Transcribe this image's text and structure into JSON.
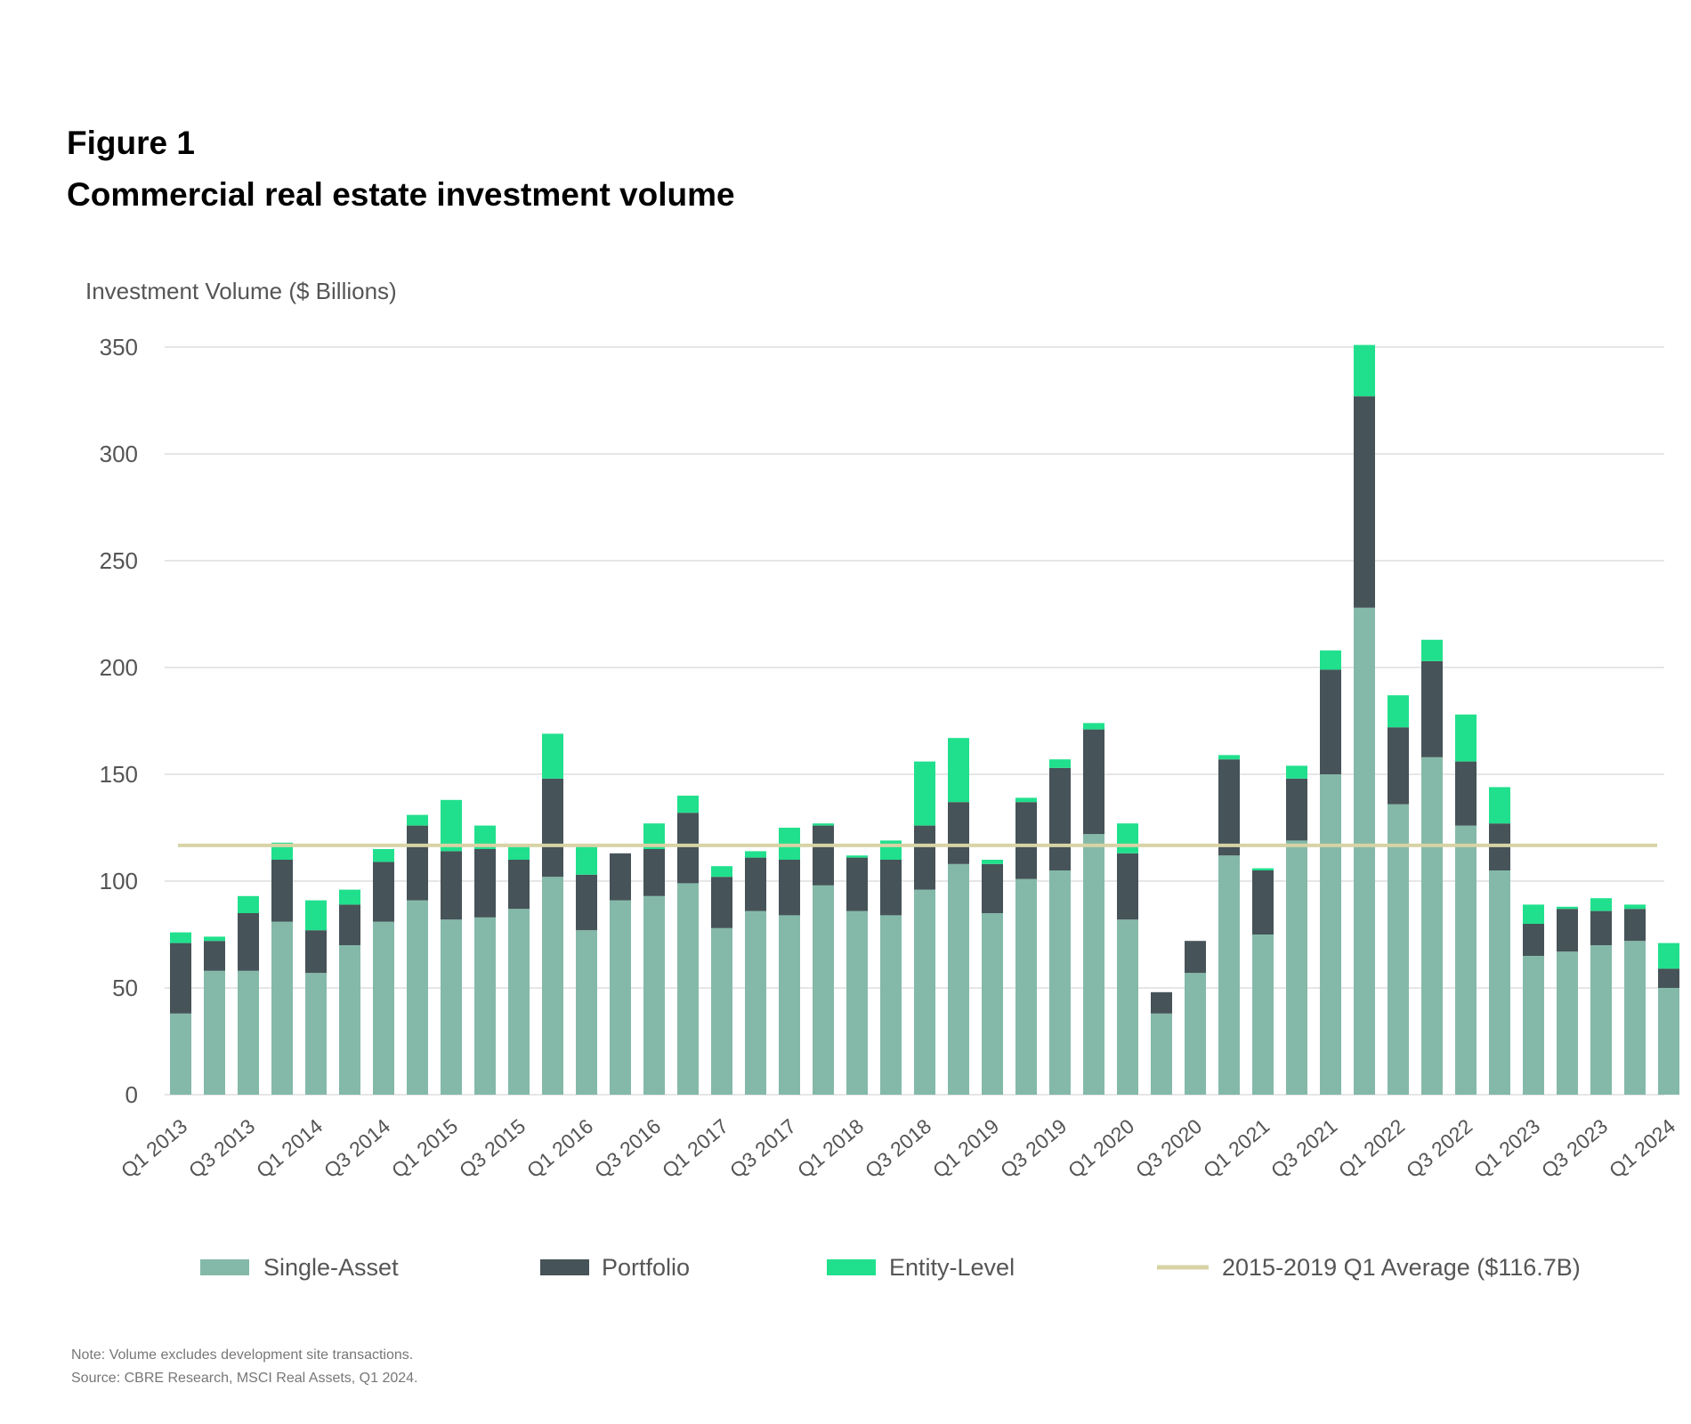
{
  "figure_label": "Figure 1",
  "figure_title": "Commercial real estate investment volume",
  "colors": {
    "single_asset": "#84b9a9",
    "portfolio": "#465358",
    "entity_level": "#20e08d",
    "average_line": "#d7d3a5",
    "grid": "#dedede",
    "text": "#555555"
  },
  "chart_data": {
    "type": "bar",
    "stacked": true,
    "ylabel": "Investment Volume ($ Billions)",
    "ylim": [
      0,
      350
    ],
    "yticks": [
      0,
      50,
      100,
      150,
      200,
      250,
      300,
      350
    ],
    "grid": true,
    "legend_position": "bottom",
    "categories": [
      "Q1 2013",
      "Q2 2013",
      "Q3 2013",
      "Q4 2013",
      "Q1 2014",
      "Q2 2014",
      "Q3 2014",
      "Q4 2014",
      "Q1 2015",
      "Q2 2015",
      "Q3 2015",
      "Q4 2015",
      "Q1 2016",
      "Q2 2016",
      "Q3 2016",
      "Q4 2016",
      "Q1 2017",
      "Q2 2017",
      "Q3 2017",
      "Q4 2017",
      "Q1 2018",
      "Q2 2018",
      "Q3 2018",
      "Q4 2018",
      "Q1 2019",
      "Q2 2019",
      "Q3 2019",
      "Q4 2019",
      "Q1 2020",
      "Q2 2020",
      "Q3 2020",
      "Q4 2020",
      "Q1 2021",
      "Q2 2021",
      "Q3 2021",
      "Q4 2021",
      "Q1 2022",
      "Q2 2022",
      "Q3 2022",
      "Q4 2022",
      "Q1 2023",
      "Q2 2023",
      "Q3 2023",
      "Q4 2023",
      "Q1 2024"
    ],
    "tick_labels": [
      "Q1 2013",
      "Q3 2013",
      "Q1 2014",
      "Q3 2014",
      "Q1 2015",
      "Q3 2015",
      "Q1 2016",
      "Q3 2016",
      "Q1 2017",
      "Q3 2017",
      "Q1 2018",
      "Q3 2018",
      "Q1 2019",
      "Q3 2019",
      "Q1 2020",
      "Q3 2020",
      "Q1 2021",
      "Q3 2021",
      "Q1 2022",
      "Q3 2022",
      "Q1 2023",
      "Q3 2023",
      "Q1 2024"
    ],
    "series": [
      {
        "name": "Single-Asset",
        "values": [
          38,
          58,
          58,
          81,
          57,
          70,
          81,
          91,
          82,
          83,
          87,
          102,
          77,
          91,
          93,
          99,
          78,
          86,
          84,
          98,
          86,
          84,
          96,
          108,
          85,
          101,
          105,
          122,
          82,
          38,
          57,
          112,
          75,
          119,
          150,
          228,
          136,
          158,
          126,
          105,
          65,
          67,
          70,
          72,
          50
        ]
      },
      {
        "name": "Portfolio",
        "values": [
          33,
          14,
          27,
          29,
          20,
          19,
          28,
          35,
          32,
          32,
          23,
          46,
          26,
          22,
          22,
          33,
          24,
          25,
          26,
          28,
          25,
          26,
          30,
          29,
          23,
          36,
          48,
          49,
          31,
          10,
          15,
          45,
          30,
          29,
          49,
          99,
          36,
          45,
          30,
          22,
          15,
          20,
          16,
          15,
          9
        ]
      },
      {
        "name": "Entity-Level",
        "values": [
          5,
          2,
          8,
          8,
          14,
          7,
          6,
          5,
          24,
          11,
          6,
          21,
          14,
          0,
          12,
          8,
          5,
          3,
          15,
          1,
          1,
          9,
          30,
          30,
          2,
          2,
          4,
          3,
          14,
          0,
          0,
          2,
          1,
          6,
          9,
          24,
          15,
          10,
          22,
          17,
          9,
          1,
          6,
          2,
          12
        ]
      }
    ],
    "reference_line": {
      "name": "2015-2019 Q1 Average ($116.7B)",
      "value": 116.7
    },
    "legend": [
      "Single-Asset",
      "Portfolio",
      "Entity-Level",
      "2015-2019 Q1 Average ($116.7B)"
    ]
  },
  "notes": {
    "note": "Note: Volume excludes development site transactions.",
    "source": "Source: CBRE Research, MSCI Real Assets, Q1 2024."
  }
}
